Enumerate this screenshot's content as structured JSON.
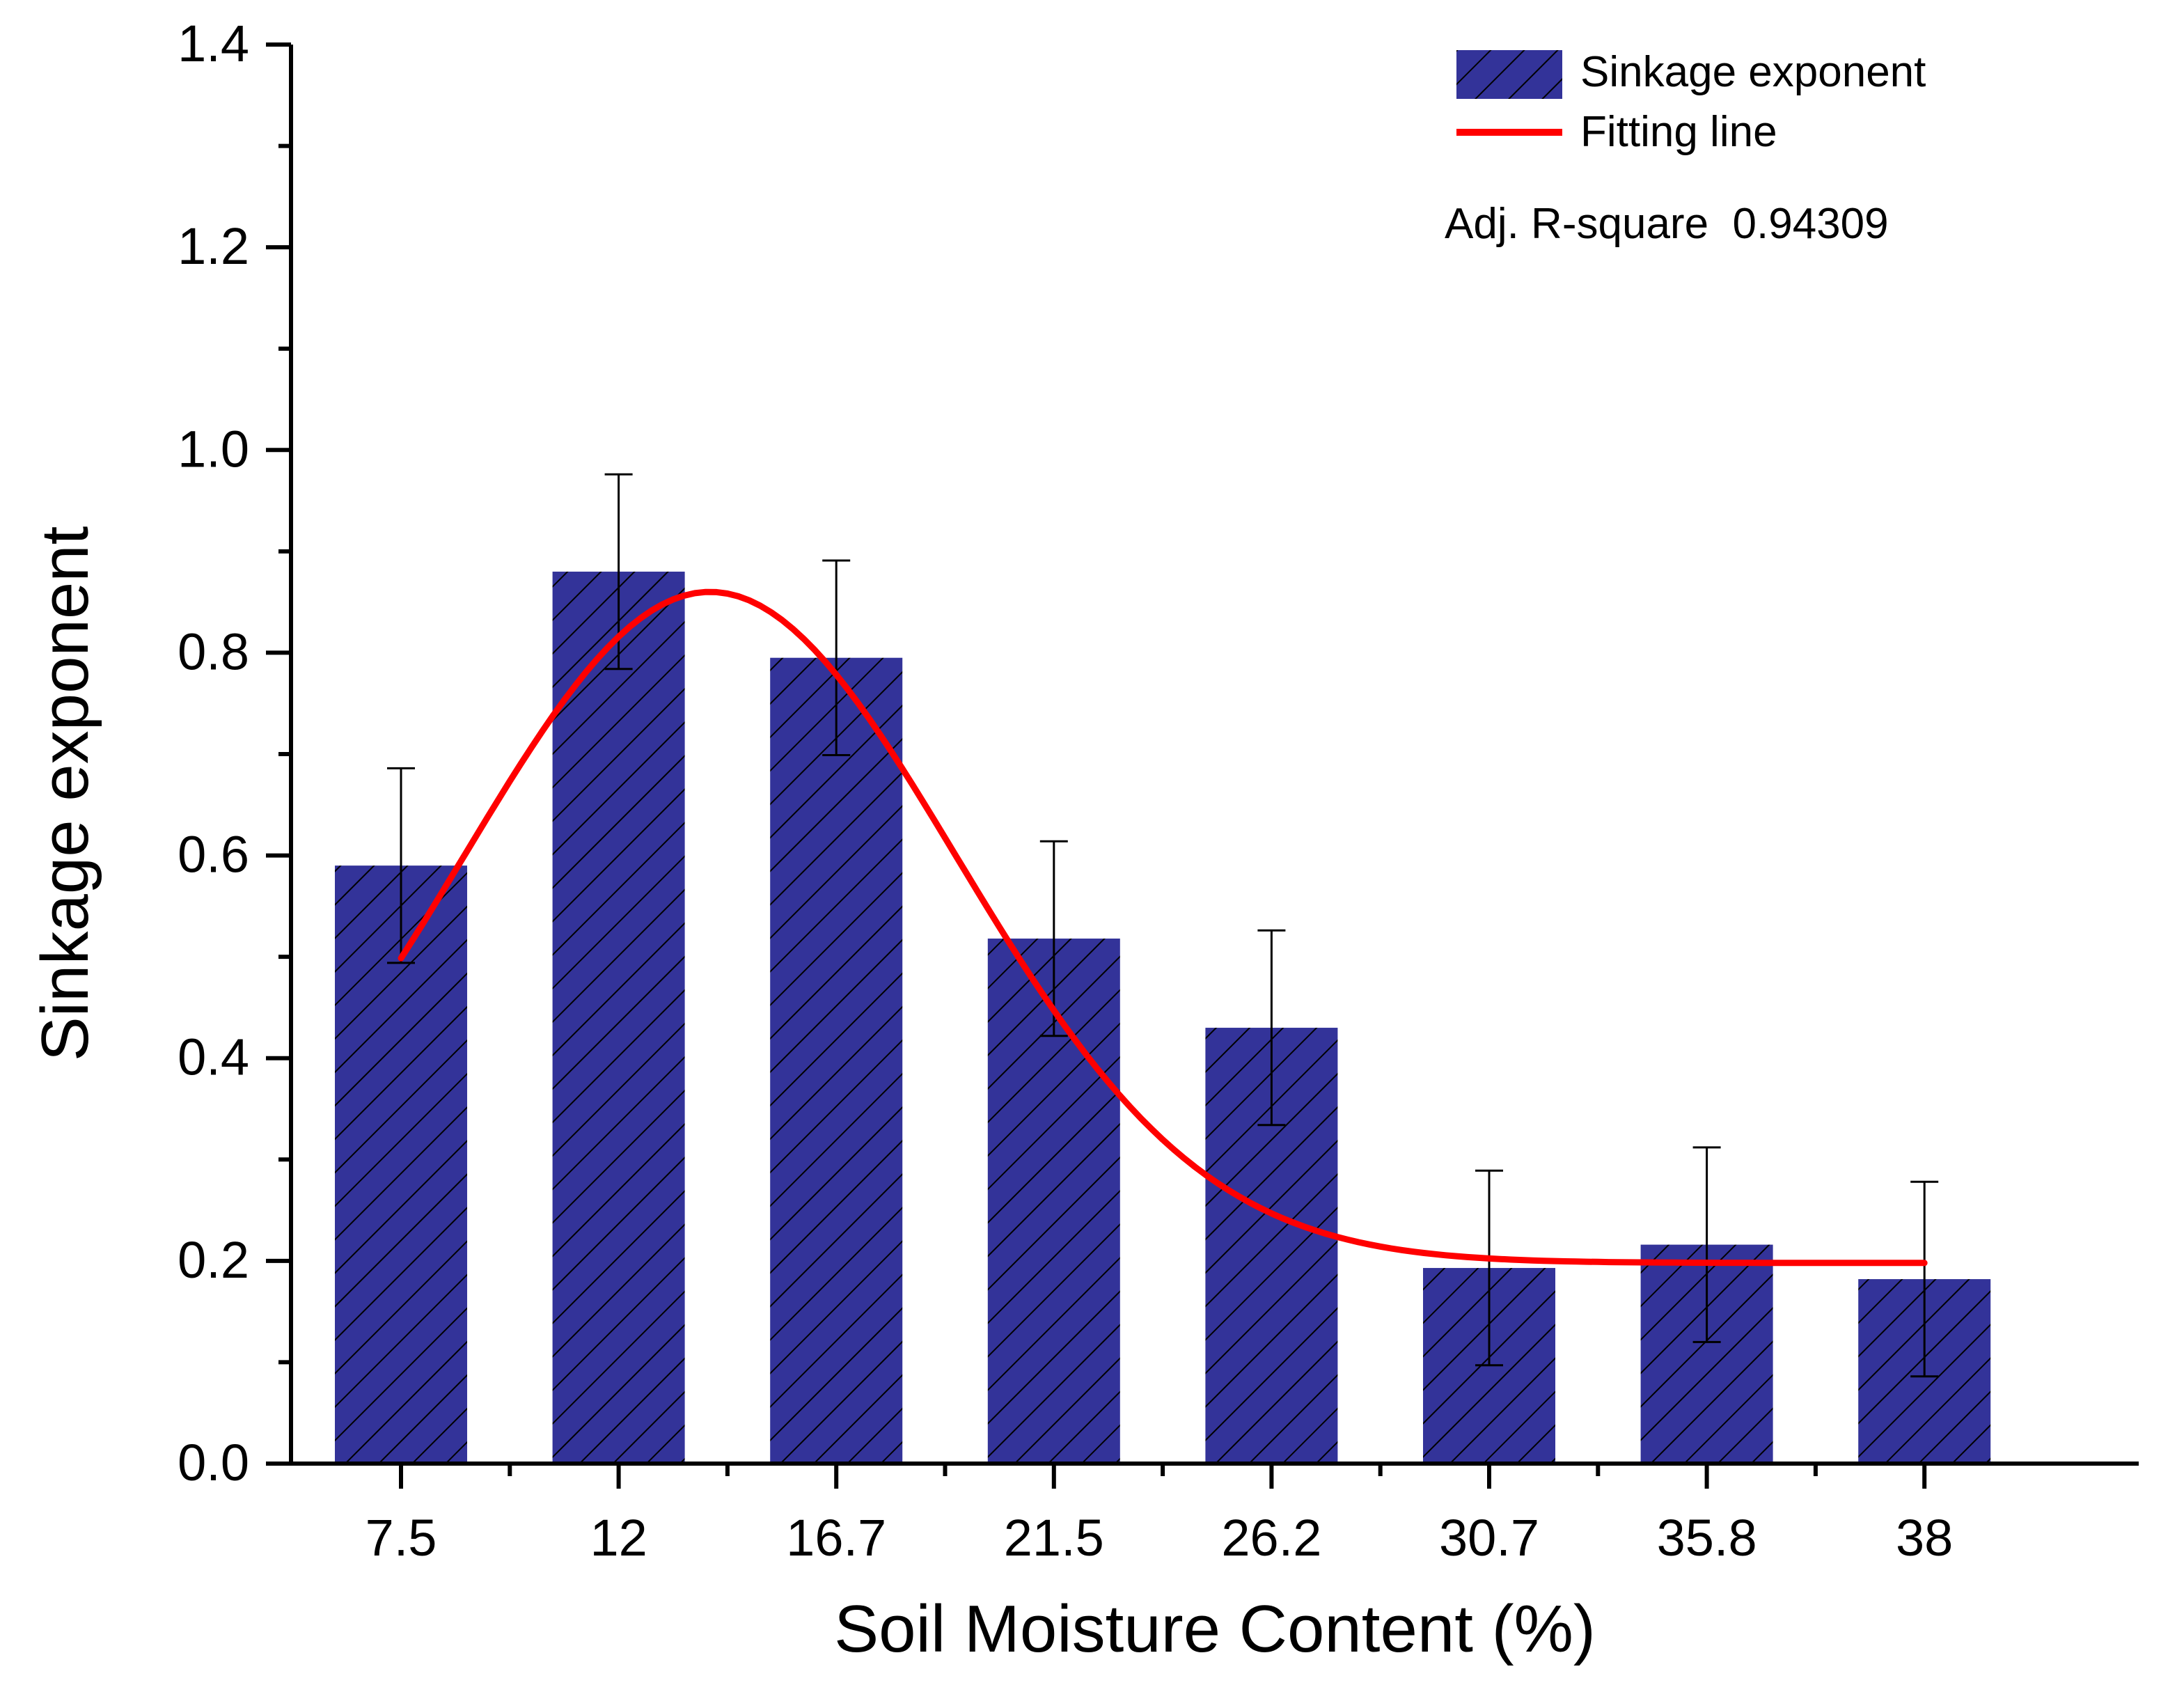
{
  "chart_data": {
    "type": "bar",
    "title": "",
    "xlabel": "Soil Moisture Content (%)",
    "ylabel": "Sinkage exponent",
    "categories": [
      "7.5",
      "12",
      "16.7",
      "21.5",
      "26.2",
      "30.7",
      "35.8",
      "38"
    ],
    "ylim": [
      0,
      1.4
    ],
    "yticks": [
      "0.0",
      "0.2",
      "0.4",
      "0.6",
      "0.8",
      "1.0",
      "1.2",
      "1.4"
    ],
    "ytick_values": [
      0,
      0.2,
      0.4,
      0.6,
      0.8,
      1.0,
      1.2,
      1.4
    ],
    "series": [
      {
        "name": "Sinkage exponent",
        "values": [
          0.59,
          0.88,
          0.795,
          0.518,
          0.43,
          0.193,
          0.216,
          0.182
        ],
        "errors": [
          0.096,
          0.096,
          0.096,
          0.096,
          0.096,
          0.096,
          0.096,
          0.096
        ],
        "color": "#333399",
        "pattern": "diagonal-hatch"
      }
    ],
    "fit": {
      "name": "Fitting line",
      "color": "#ff0000",
      "type": "gaussian",
      "y0": 0.198,
      "amplitude": 0.662,
      "center_index": 1.42,
      "sigma_index": 1.13,
      "x_start_index": 0,
      "x_end_index": 7
    },
    "annotation": "Adj. R-square  0.94309",
    "legend": {
      "position": "top-right",
      "entries": [
        "Sinkage exponent",
        "Fitting line"
      ]
    }
  }
}
